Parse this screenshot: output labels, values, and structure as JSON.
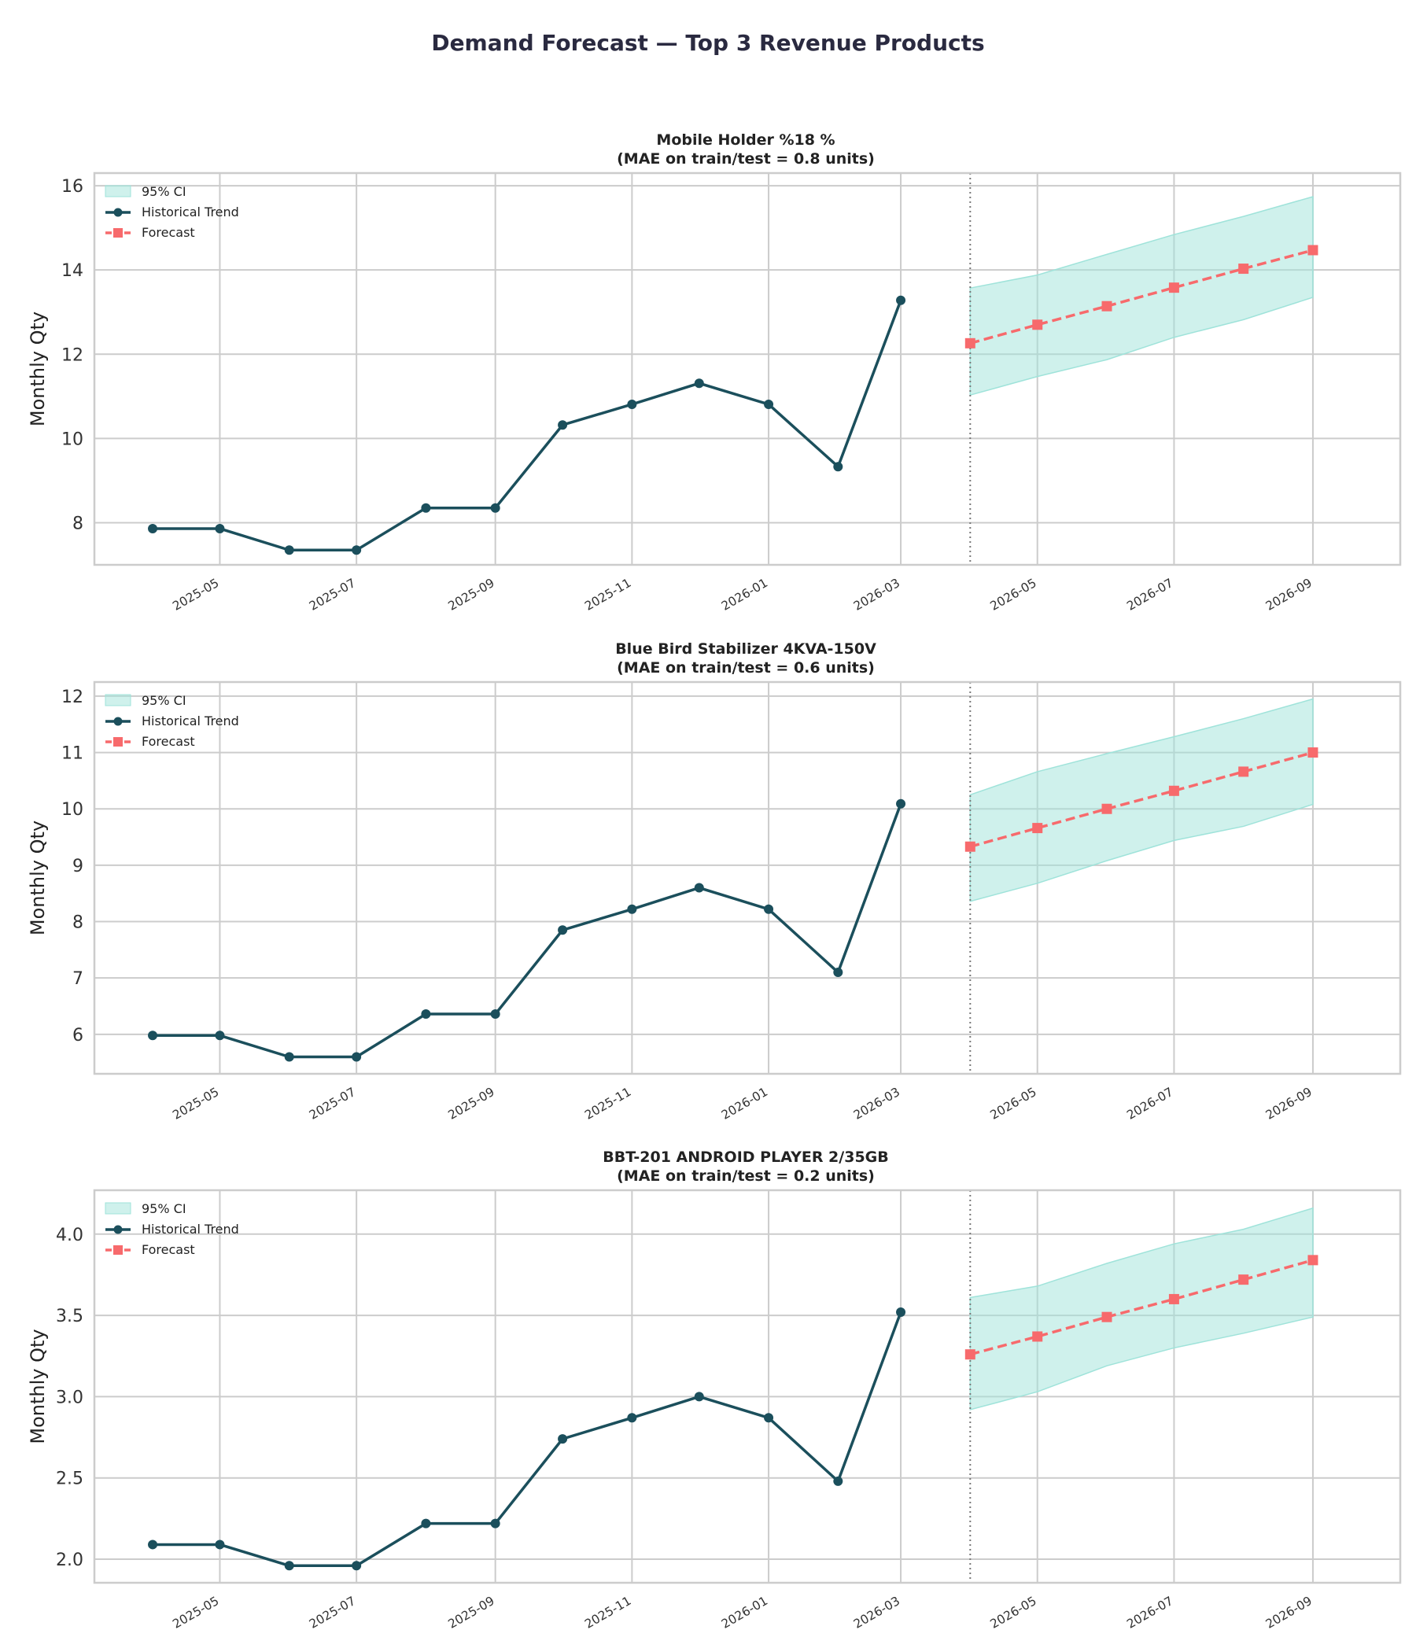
{
  "figure": {
    "title": "Demand Forecast — Top 3 Revenue Products"
  },
  "colors": {
    "historical": "#1b4f5c",
    "forecast": "#f76a6c",
    "ci_fill": "#9fe3da",
    "grid": "#cccccc",
    "divider": "#777777"
  },
  "chart_data": [
    {
      "type": "line",
      "title": "Mobile Holder %18 %",
      "subtitle": "(MAE on train/test = 0.8 units)",
      "ylabel": "Monthly Qty",
      "ylim": [
        7.0,
        16.3
      ],
      "yticks": [
        8,
        10,
        12,
        14,
        16
      ],
      "ytick_labels": [
        "8",
        "10",
        "12",
        "14",
        "16"
      ],
      "xlim": [
        "2025-03-06",
        "2026-10-10"
      ],
      "xticks": [
        "2025-05-01",
        "2025-07-01",
        "2025-09-01",
        "2025-11-01",
        "2026-01-01",
        "2026-03-01",
        "2026-05-01",
        "2026-07-01",
        "2026-09-01"
      ],
      "xtick_labels": [
        "2025-05",
        "2025-07",
        "2025-09",
        "2025-11",
        "2026-01",
        "2026-03",
        "2026-05",
        "2026-07",
        "2026-09"
      ],
      "grid": true,
      "legend": {
        "position": "top-left",
        "labels": [
          "95% CI",
          "Historical Trend",
          "Forecast"
        ]
      },
      "forecast_start": "2026-04-01",
      "historical": {
        "x": [
          "2025-04-01",
          "2025-05-01",
          "2025-06-01",
          "2025-07-01",
          "2025-08-01",
          "2025-09-01",
          "2025-10-01",
          "2025-11-01",
          "2025-12-01",
          "2026-01-01",
          "2026-02-01",
          "2026-03-01"
        ],
        "y": [
          7.86,
          7.86,
          7.35,
          7.35,
          8.35,
          8.35,
          10.32,
          10.81,
          11.31,
          10.81,
          9.33,
          13.28
        ]
      },
      "forecast": {
        "x": [
          "2026-04-01",
          "2026-05-01",
          "2026-06-01",
          "2026-07-01",
          "2026-08-01",
          "2026-09-01"
        ],
        "y": [
          12.26,
          12.7,
          13.14,
          13.58,
          14.03,
          14.47
        ],
        "ci_lower": [
          11.03,
          11.47,
          11.87,
          12.4,
          12.82,
          13.35
        ],
        "ci_upper": [
          13.57,
          13.88,
          14.37,
          14.84,
          15.27,
          15.74
        ]
      }
    },
    {
      "type": "line",
      "title": "Blue Bird Stabilizer 4KVA-150V",
      "subtitle": "(MAE on train/test = 0.6 units)",
      "ylabel": "Monthly Qty",
      "ylim": [
        5.3,
        12.25
      ],
      "yticks": [
        6,
        7,
        8,
        9,
        10,
        11,
        12
      ],
      "ytick_labels": [
        "6",
        "7",
        "8",
        "9",
        "10",
        "11",
        "12"
      ],
      "xlim": [
        "2025-03-06",
        "2026-10-10"
      ],
      "xticks": [
        "2025-05-01",
        "2025-07-01",
        "2025-09-01",
        "2025-11-01",
        "2026-01-01",
        "2026-03-01",
        "2026-05-01",
        "2026-07-01",
        "2026-09-01"
      ],
      "xtick_labels": [
        "2025-05",
        "2025-07",
        "2025-09",
        "2025-11",
        "2026-01",
        "2026-03",
        "2026-05",
        "2026-07",
        "2026-09"
      ],
      "grid": true,
      "legend": {
        "position": "top-left",
        "labels": [
          "95% CI",
          "Historical Trend",
          "Forecast"
        ]
      },
      "forecast_start": "2026-04-01",
      "historical": {
        "x": [
          "2025-04-01",
          "2025-05-01",
          "2025-06-01",
          "2025-07-01",
          "2025-08-01",
          "2025-09-01",
          "2025-10-01",
          "2025-11-01",
          "2025-12-01",
          "2026-01-01",
          "2026-02-01",
          "2026-03-01"
        ],
        "y": [
          5.98,
          5.98,
          5.6,
          5.6,
          6.36,
          6.36,
          7.85,
          8.22,
          8.6,
          8.22,
          7.1,
          10.09
        ]
      },
      "forecast": {
        "x": [
          "2026-04-01",
          "2026-05-01",
          "2026-06-01",
          "2026-07-01",
          "2026-08-01",
          "2026-09-01"
        ],
        "y": [
          9.33,
          9.66,
          10.0,
          10.32,
          10.66,
          11.0
        ],
        "ci_lower": [
          8.36,
          8.68,
          9.08,
          9.44,
          9.69,
          10.08
        ],
        "ci_upper": [
          10.25,
          10.66,
          10.98,
          11.28,
          11.6,
          11.95
        ]
      }
    },
    {
      "type": "line",
      "title": "BBT-201 ANDROID PLAYER 2/35GB",
      "subtitle": "(MAE on train/test = 0.2 units)",
      "ylabel": "Monthly Qty",
      "ylim": [
        1.855,
        4.27
      ],
      "yticks": [
        2.0,
        2.5,
        3.0,
        3.5,
        4.0
      ],
      "ytick_labels": [
        "2.0",
        "2.5",
        "3.0",
        "3.5",
        "4.0"
      ],
      "xlim": [
        "2025-03-06",
        "2026-10-10"
      ],
      "xticks": [
        "2025-05-01",
        "2025-07-01",
        "2025-09-01",
        "2025-11-01",
        "2026-01-01",
        "2026-03-01",
        "2026-05-01",
        "2026-07-01",
        "2026-09-01"
      ],
      "xtick_labels": [
        "2025-05",
        "2025-07",
        "2025-09",
        "2025-11",
        "2026-01",
        "2026-03",
        "2026-05",
        "2026-07",
        "2026-09"
      ],
      "grid": true,
      "legend": {
        "position": "top-left",
        "labels": [
          "95% CI",
          "Historical Trend",
          "Forecast"
        ]
      },
      "forecast_start": "2026-04-01",
      "historical": {
        "x": [
          "2025-04-01",
          "2025-05-01",
          "2025-06-01",
          "2025-07-01",
          "2025-08-01",
          "2025-09-01",
          "2025-10-01",
          "2025-11-01",
          "2025-12-01",
          "2026-01-01",
          "2026-02-01",
          "2026-03-01"
        ],
        "y": [
          2.09,
          2.09,
          1.96,
          1.96,
          2.22,
          2.22,
          2.74,
          2.87,
          3.0,
          2.87,
          2.48,
          3.52
        ]
      },
      "forecast": {
        "x": [
          "2026-04-01",
          "2026-05-01",
          "2026-06-01",
          "2026-07-01",
          "2026-08-01",
          "2026-09-01"
        ],
        "y": [
          3.26,
          3.37,
          3.49,
          3.6,
          3.72,
          3.84
        ],
        "ci_lower": [
          2.92,
          3.03,
          3.19,
          3.3,
          3.39,
          3.49
        ],
        "ci_upper": [
          3.61,
          3.68,
          3.82,
          3.94,
          4.03,
          4.16
        ]
      }
    }
  ]
}
